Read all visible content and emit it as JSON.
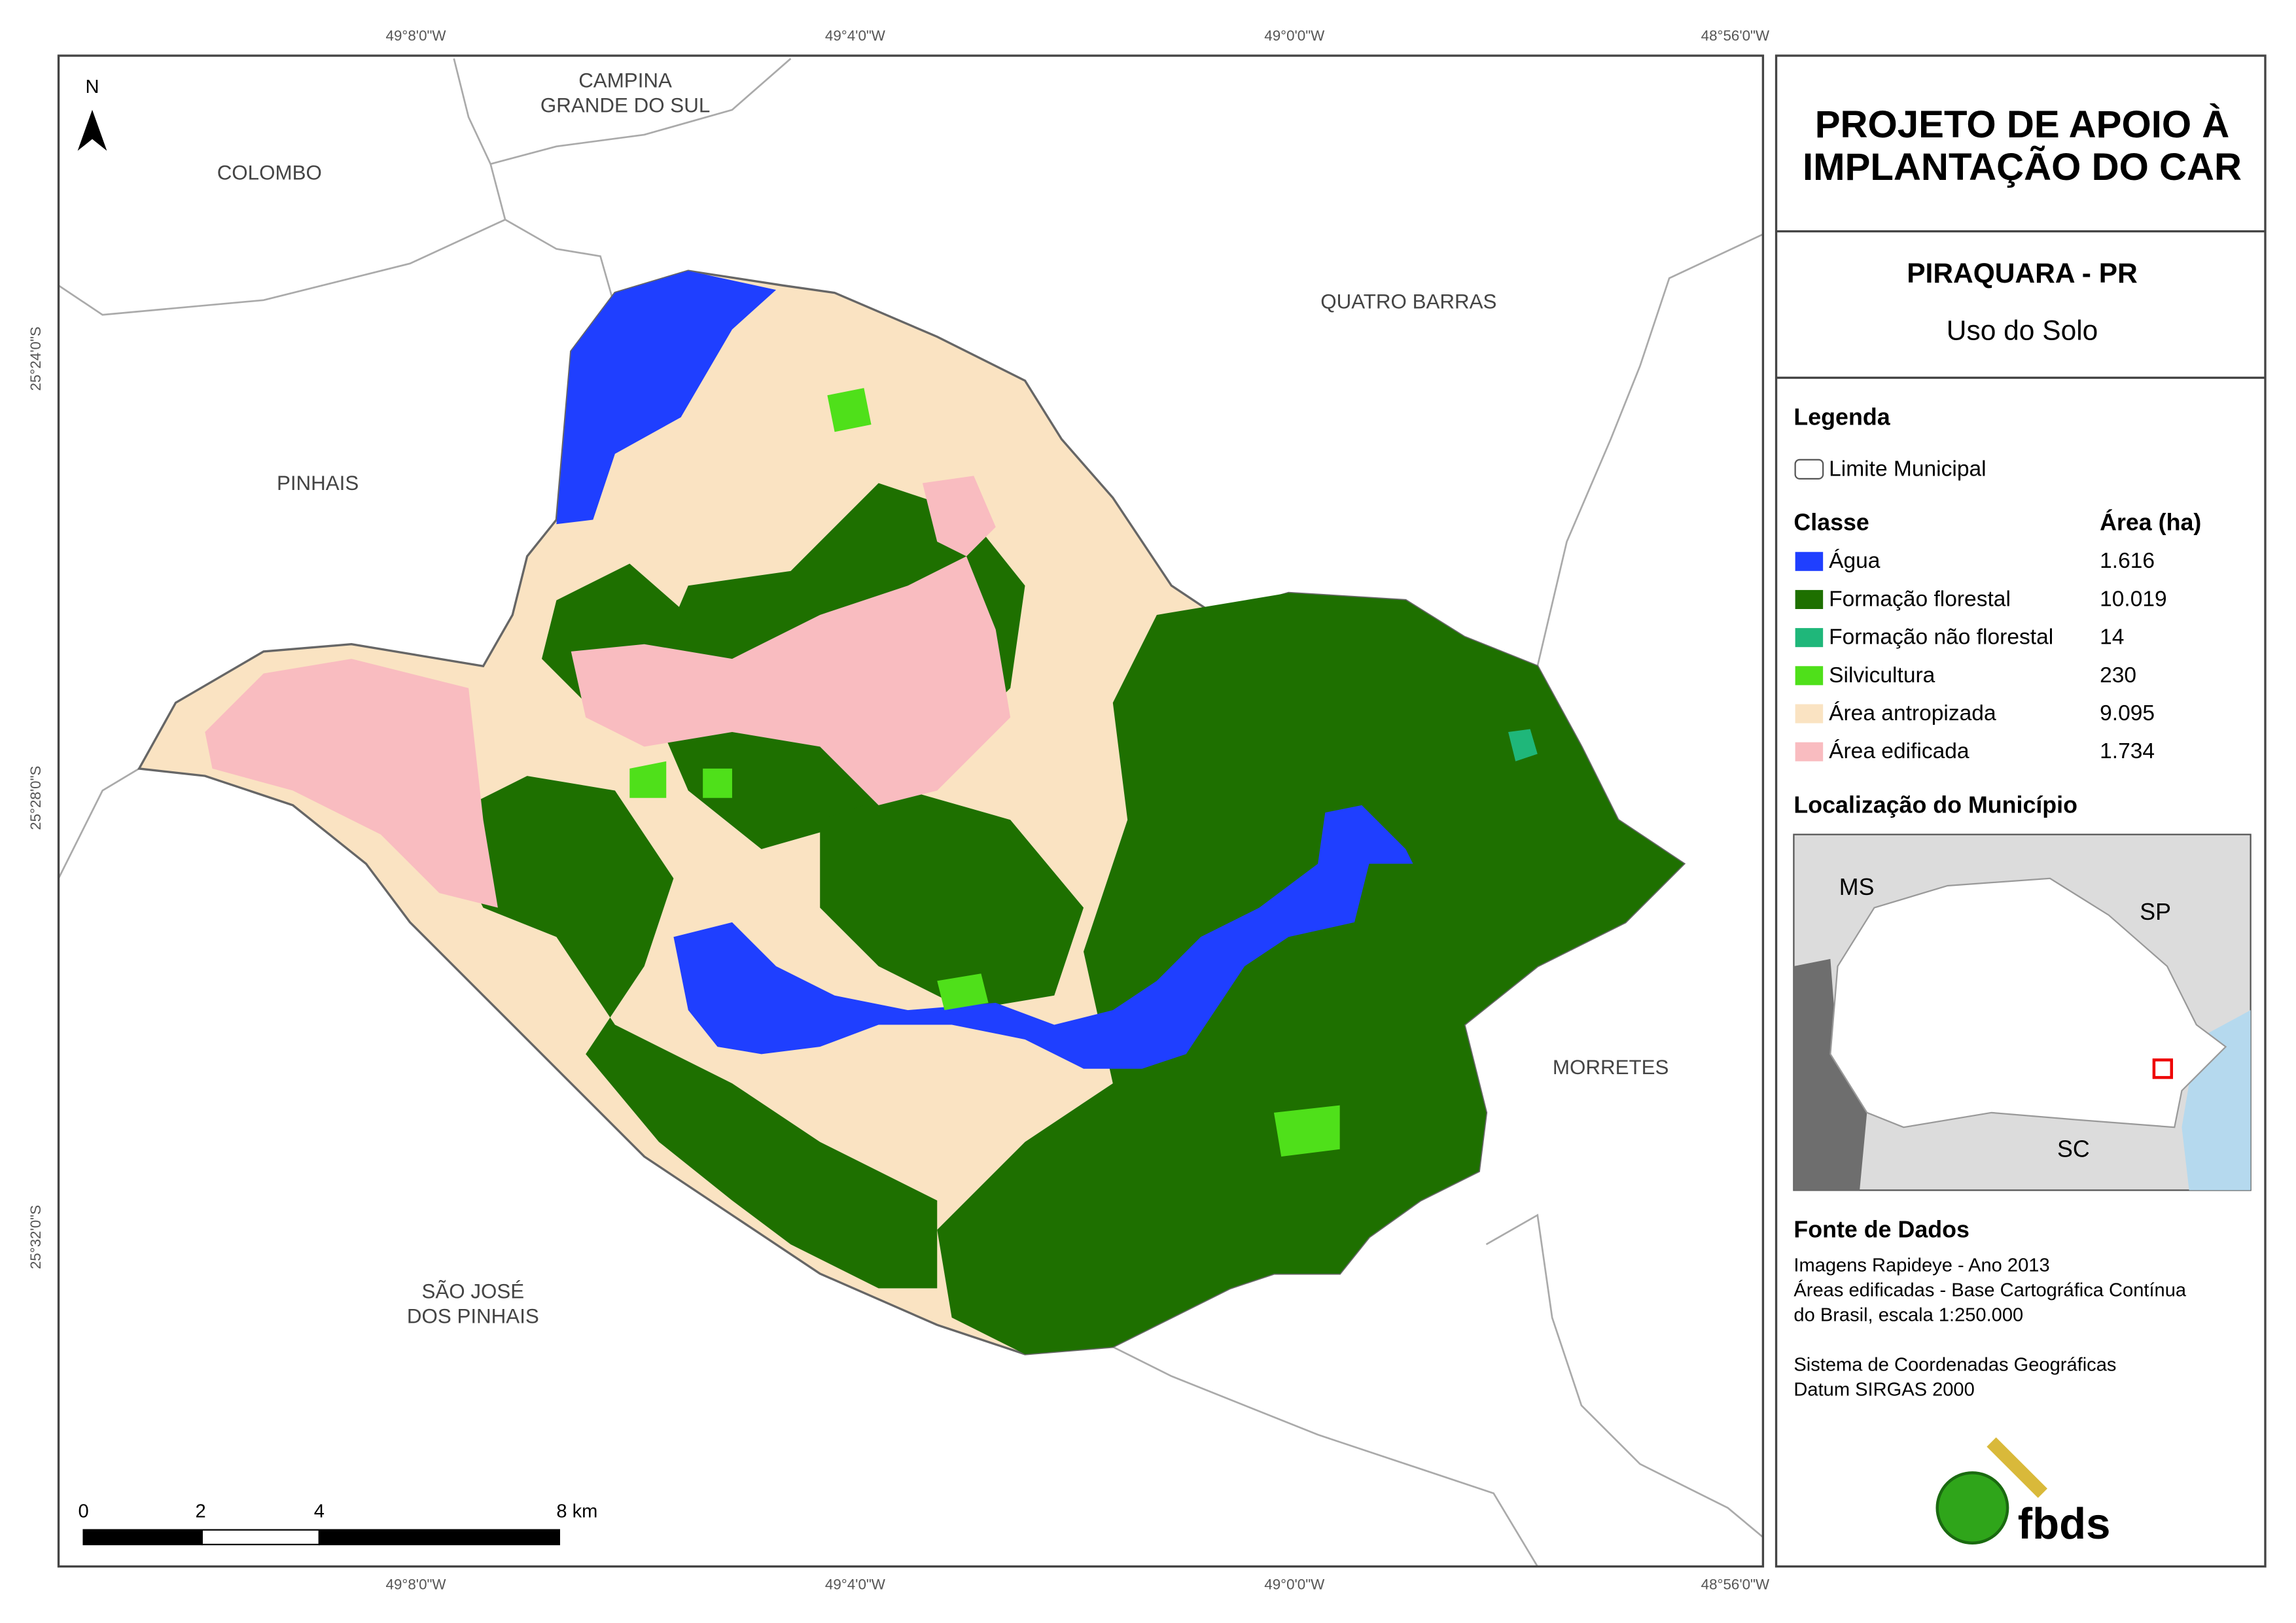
{
  "header": {
    "title_lines": [
      "PROJETO DE APOIO À",
      "IMPLANTAÇÃO DO CAR"
    ]
  },
  "subtitle": {
    "municipality": "PIRAQUARA - PR",
    "theme": "Uso do Solo"
  },
  "legend": {
    "heading": "Legenda",
    "boundary": "Limite Municipal",
    "class_header": "Classe",
    "area_header": "Área (ha)",
    "classes": [
      {
        "name": "Água",
        "area": "1.616"
      },
      {
        "name": "Formação florestal",
        "area": "10.019"
      },
      {
        "name": "Formação não florestal",
        "area": "14"
      },
      {
        "name": "Silvicultura",
        "area": "230"
      },
      {
        "name": "Área antropizada",
        "area": "9.095"
      },
      {
        "name": "Área edificada",
        "area": "1.734"
      }
    ]
  },
  "location": {
    "heading": "Localização do Município",
    "labels": [
      "MS",
      "SP",
      "SC"
    ]
  },
  "source": {
    "heading": "Fonte de Dados",
    "lines": [
      "Imagens Rapideye - Ano 2013",
      "Áreas edificadas - Base Cartográfica Contínua",
      "do Brasil, escala 1:250.000",
      "Sistema de Coordenadas Geográficas",
      "Datum SIRGAS 2000"
    ]
  },
  "logo": "fbds",
  "map": {
    "north": "N",
    "neighbors": [
      {
        "lines": [
          "CAMPINA",
          "GRANDE DO SUL"
        ]
      },
      {
        "lines": [
          "COLOMBO"
        ]
      },
      {
        "lines": [
          "QUATRO BARRAS"
        ]
      },
      {
        "lines": [
          "PINHAIS"
        ]
      },
      {
        "lines": [
          "MORRETES"
        ]
      },
      {
        "lines": [
          "SÃO JOSÉ",
          "DOS PINHAIS"
        ]
      }
    ],
    "coords": {
      "top": [
        "49°8'0\"W",
        "49°4'0\"W",
        "49°0'0\"W",
        "48°56'0\"W"
      ],
      "bottom": [
        "49°8'0\"W",
        "49°4'0\"W",
        "49°0'0\"W",
        "48°56'0\"W"
      ],
      "left": [
        "25°24'0\"S",
        "25°28'0\"S",
        "25°32'0\"S"
      ]
    },
    "scale": [
      "0",
      "2",
      "4",
      "8 km"
    ]
  }
}
